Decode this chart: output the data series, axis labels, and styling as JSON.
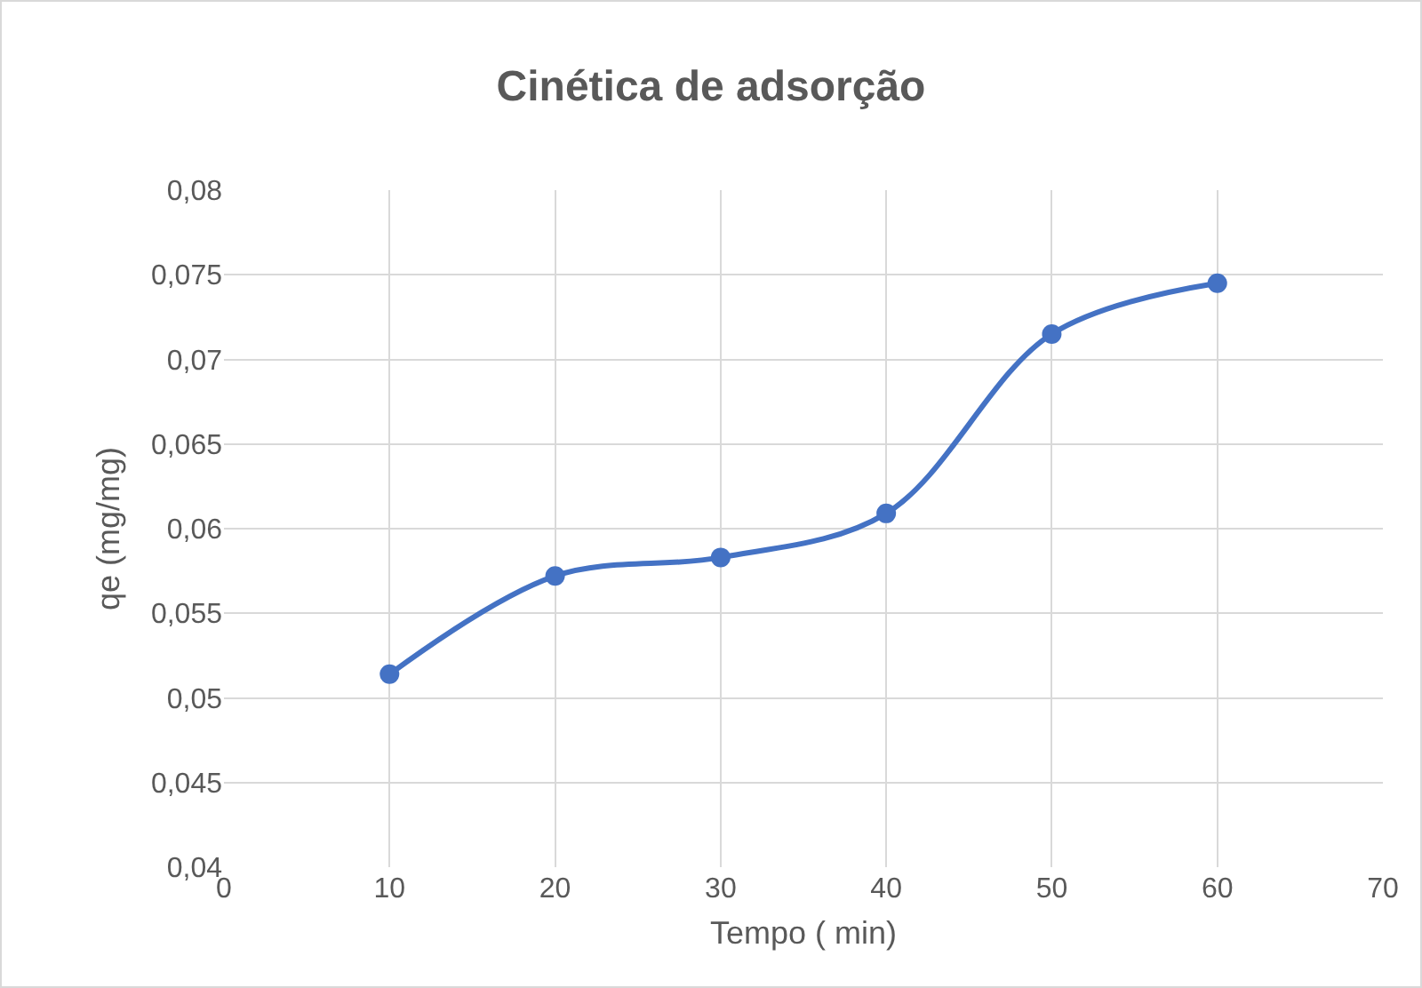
{
  "chart_data": {
    "type": "line",
    "title": "Cinética de adsorção",
    "xlabel": "Tempo ( min)",
    "ylabel": "qe (mg/mg)",
    "x": [
      10,
      20,
      30,
      40,
      50,
      60
    ],
    "series": [
      {
        "color": "#4472c4",
        "values": [
          0.0514,
          0.0572,
          0.0583,
          0.0609,
          0.0715,
          0.0745
        ]
      }
    ],
    "xlim": [
      0,
      70
    ],
    "xticks": [
      0,
      10,
      20,
      30,
      40,
      50,
      60,
      70
    ],
    "ylim": [
      0.04,
      0.08
    ],
    "yticks": [
      {
        "value": 0.04,
        "label": "0,04"
      },
      {
        "value": 0.045,
        "label": "0,045"
      },
      {
        "value": 0.05,
        "label": "0,05"
      },
      {
        "value": 0.055,
        "label": "0,055"
      },
      {
        "value": 0.06,
        "label": "0,06"
      },
      {
        "value": 0.065,
        "label": "0,065"
      },
      {
        "value": 0.07,
        "label": "0,07"
      },
      {
        "value": 0.075,
        "label": "0,075"
      },
      {
        "value": 0.08,
        "label": "0,08"
      }
    ],
    "grid": true,
    "marker": "circle",
    "line_style": "solid"
  }
}
